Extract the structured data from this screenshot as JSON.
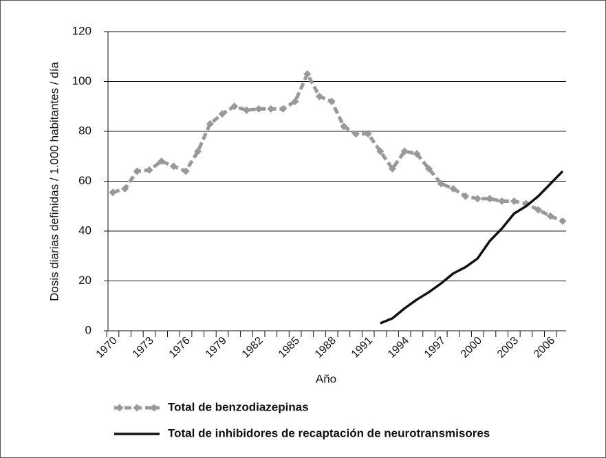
{
  "chart_data": {
    "type": "line",
    "xlabel": "Año",
    "ylabel": "Dosis diarias definidas / 1.000 habitantes / día",
    "categories": [
      "1970",
      null,
      null,
      "1973",
      null,
      null,
      "1976",
      null,
      null,
      "1979",
      null,
      null,
      "1982",
      null,
      null,
      "1985",
      null,
      null,
      "1988",
      null,
      null,
      "1991",
      null,
      null,
      "1994",
      null,
      null,
      "1997",
      null,
      null,
      "2000",
      null,
      null,
      "2003",
      null,
      null,
      "2006",
      null
    ],
    "series": [
      {
        "name": "Total de benzodiazepinas",
        "color": "#999999",
        "dashed": true,
        "marker": "diamond",
        "values": [
          55.5,
          57,
          64,
          64.5,
          68,
          66,
          64,
          72,
          83,
          87,
          90,
          88.5,
          89,
          89,
          89,
          92,
          103,
          94,
          92,
          82,
          79,
          79,
          72,
          65,
          72,
          71,
          65,
          59,
          57,
          54,
          53,
          53,
          52,
          52,
          51,
          48.5,
          46,
          44
        ]
      },
      {
        "name": "Total de inhibidores de recaptación de neurotransmisores",
        "color": "#111111",
        "dashed": false,
        "marker": null,
        "values": [
          null,
          null,
          null,
          null,
          null,
          null,
          null,
          null,
          null,
          null,
          null,
          null,
          null,
          null,
          null,
          null,
          null,
          null,
          null,
          null,
          null,
          null,
          3,
          5,
          9,
          12.5,
          15.5,
          19,
          23,
          25.5,
          29,
          36,
          41,
          47,
          50,
          54,
          59,
          64
        ]
      }
    ],
    "ylim": [
      0,
      120
    ],
    "yticks": [
      0,
      20,
      40,
      60,
      80,
      100,
      120
    ],
    "grid": true,
    "legend": "bottom"
  }
}
